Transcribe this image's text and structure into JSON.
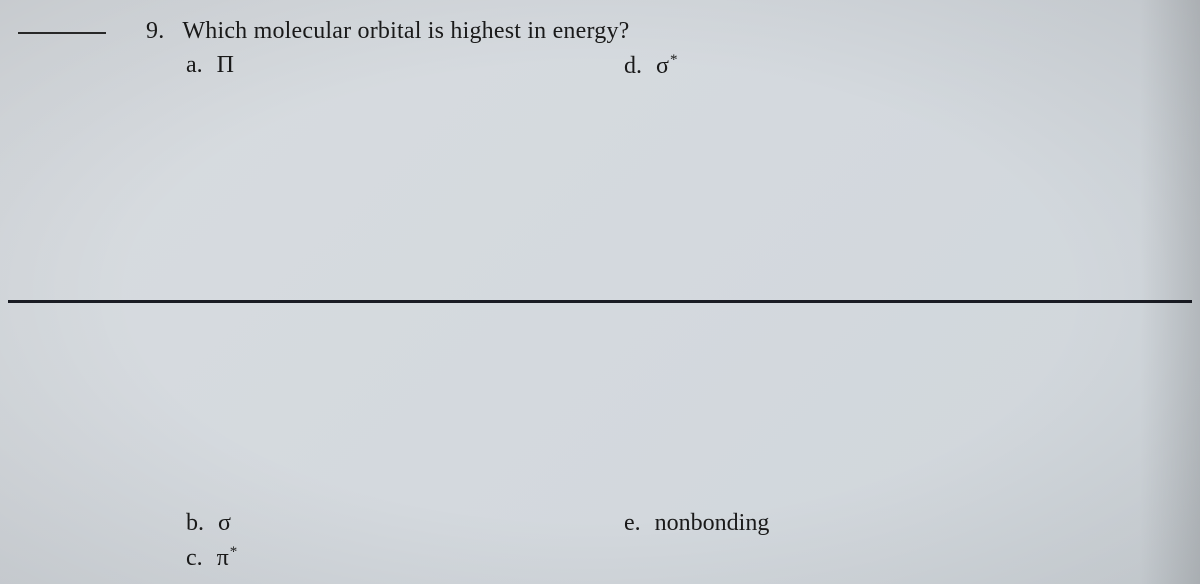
{
  "question": {
    "number": "9.",
    "text": "Which molecular orbital is highest in energy?"
  },
  "options": {
    "a": {
      "letter": "a.",
      "value": "Π"
    },
    "b": {
      "letter": "b.",
      "value": "σ"
    },
    "c": {
      "letter": "c.",
      "value": "π",
      "superscript": "*"
    },
    "d": {
      "letter": "d.",
      "value": "σ",
      "superscript": "*"
    },
    "e": {
      "letter": "e.",
      "value": "nonbonding"
    }
  },
  "style": {
    "background_color": "#d6dbe0",
    "text_color": "#1a1a1a",
    "divider_color": "#1a1c24",
    "rule_color": "#2a2a2a",
    "font_family": "Times New Roman",
    "question_fontsize_pt": 18,
    "option_fontsize_pt": 18
  }
}
